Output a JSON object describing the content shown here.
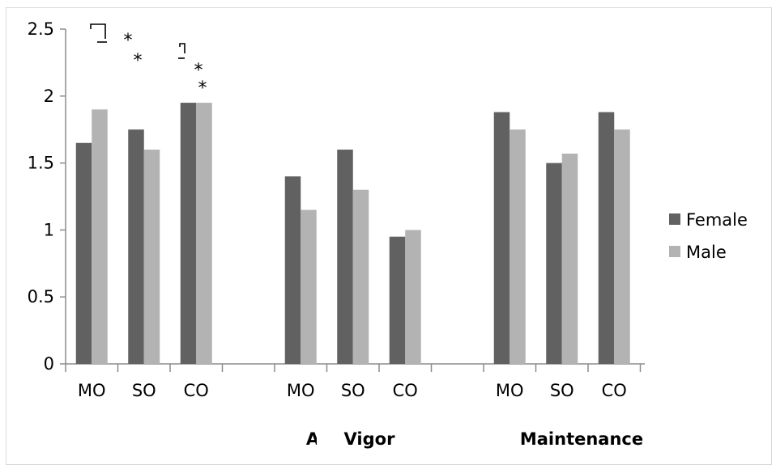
{
  "chart_data": {
    "type": "bar",
    "title": "",
    "xlabel": "",
    "ylabel": "",
    "ylim": [
      0,
      2.5
    ],
    "y_ticks": [
      "0",
      "0.5",
      "1",
      "1.5",
      "2",
      "2.5"
    ],
    "categories": [
      "MO",
      "SO",
      "CO",
      "MO",
      "SO",
      "CO",
      "MO",
      "SO",
      "CO"
    ],
    "groups": [
      {
        "label": "A",
        "categories": [
          "MO",
          "SO",
          "CO"
        ]
      },
      {
        "label": "Vigor",
        "categories": [
          "MO",
          "SO",
          "CO"
        ]
      },
      {
        "label": "Maintenance",
        "categories": [
          "MO",
          "SO",
          "CO"
        ]
      }
    ],
    "series": [
      {
        "name": "Female",
        "color": "#616161",
        "values": [
          1.65,
          1.75,
          1.95,
          1.4,
          1.6,
          0.95,
          1.88,
          1.5,
          1.88
        ]
      },
      {
        "name": "Male",
        "color": "#b3b3b3",
        "values": [
          1.9,
          1.6,
          1.95,
          1.15,
          1.3,
          1.0,
          1.75,
          1.57,
          1.75
        ]
      }
    ],
    "annotations": [
      "*",
      "*",
      "*",
      "*"
    ],
    "grid": false,
    "legend": "right"
  }
}
